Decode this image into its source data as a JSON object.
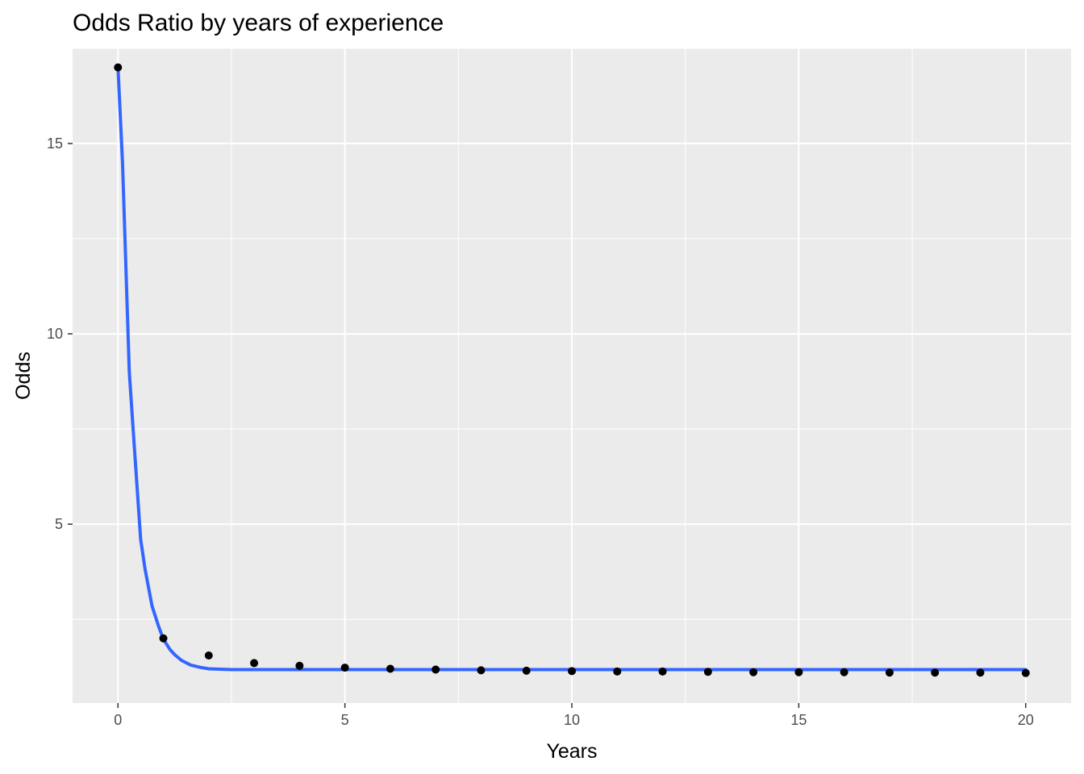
{
  "chart_data": {
    "type": "scatter",
    "title": "Odds Ratio by years of experience",
    "xlabel": "Years",
    "ylabel": "Odds",
    "xlim": [
      -1,
      21
    ],
    "ylim": [
      0.3,
      17.5
    ],
    "xticks": [
      0,
      5,
      10,
      15,
      20
    ],
    "xtick_labels": [
      "0",
      "5",
      "10",
      "15",
      "20"
    ],
    "yticks": [
      5,
      10,
      15
    ],
    "ytick_labels": [
      "5",
      "10",
      "15"
    ],
    "grid": true,
    "legend": "none",
    "colors": {
      "panel": "#ebebeb",
      "grid": "#ffffff",
      "points": "#000000",
      "line": "#3366ff"
    },
    "series": [
      {
        "kind": "points",
        "x": [
          0,
          1,
          2,
          3,
          4,
          5,
          6,
          7,
          8,
          9,
          10,
          11,
          12,
          13,
          14,
          15,
          16,
          17,
          18,
          19,
          20
        ],
        "y": [
          17.0,
          2.0,
          1.55,
          1.35,
          1.28,
          1.23,
          1.2,
          1.18,
          1.16,
          1.15,
          1.14,
          1.13,
          1.13,
          1.12,
          1.11,
          1.11,
          1.11,
          1.1,
          1.1,
          1.1,
          1.09
        ]
      },
      {
        "kind": "smooth",
        "x": [
          0,
          0.1,
          0.25,
          0.35,
          0.5,
          0.6,
          0.75,
          0.9,
          1.0,
          1.15,
          1.25,
          1.4,
          1.6,
          1.8,
          2.0,
          2.25,
          2.5,
          3,
          4,
          5,
          6,
          8,
          10,
          12,
          14,
          16,
          18,
          20
        ],
        "y": [
          17.0,
          14.5,
          9.0,
          7.2,
          4.6,
          3.8,
          2.85,
          2.3,
          1.98,
          1.7,
          1.57,
          1.42,
          1.3,
          1.24,
          1.2,
          1.19,
          1.18,
          1.18,
          1.18,
          1.18,
          1.18,
          1.18,
          1.18,
          1.18,
          1.18,
          1.18,
          1.18,
          1.18
        ]
      }
    ]
  }
}
